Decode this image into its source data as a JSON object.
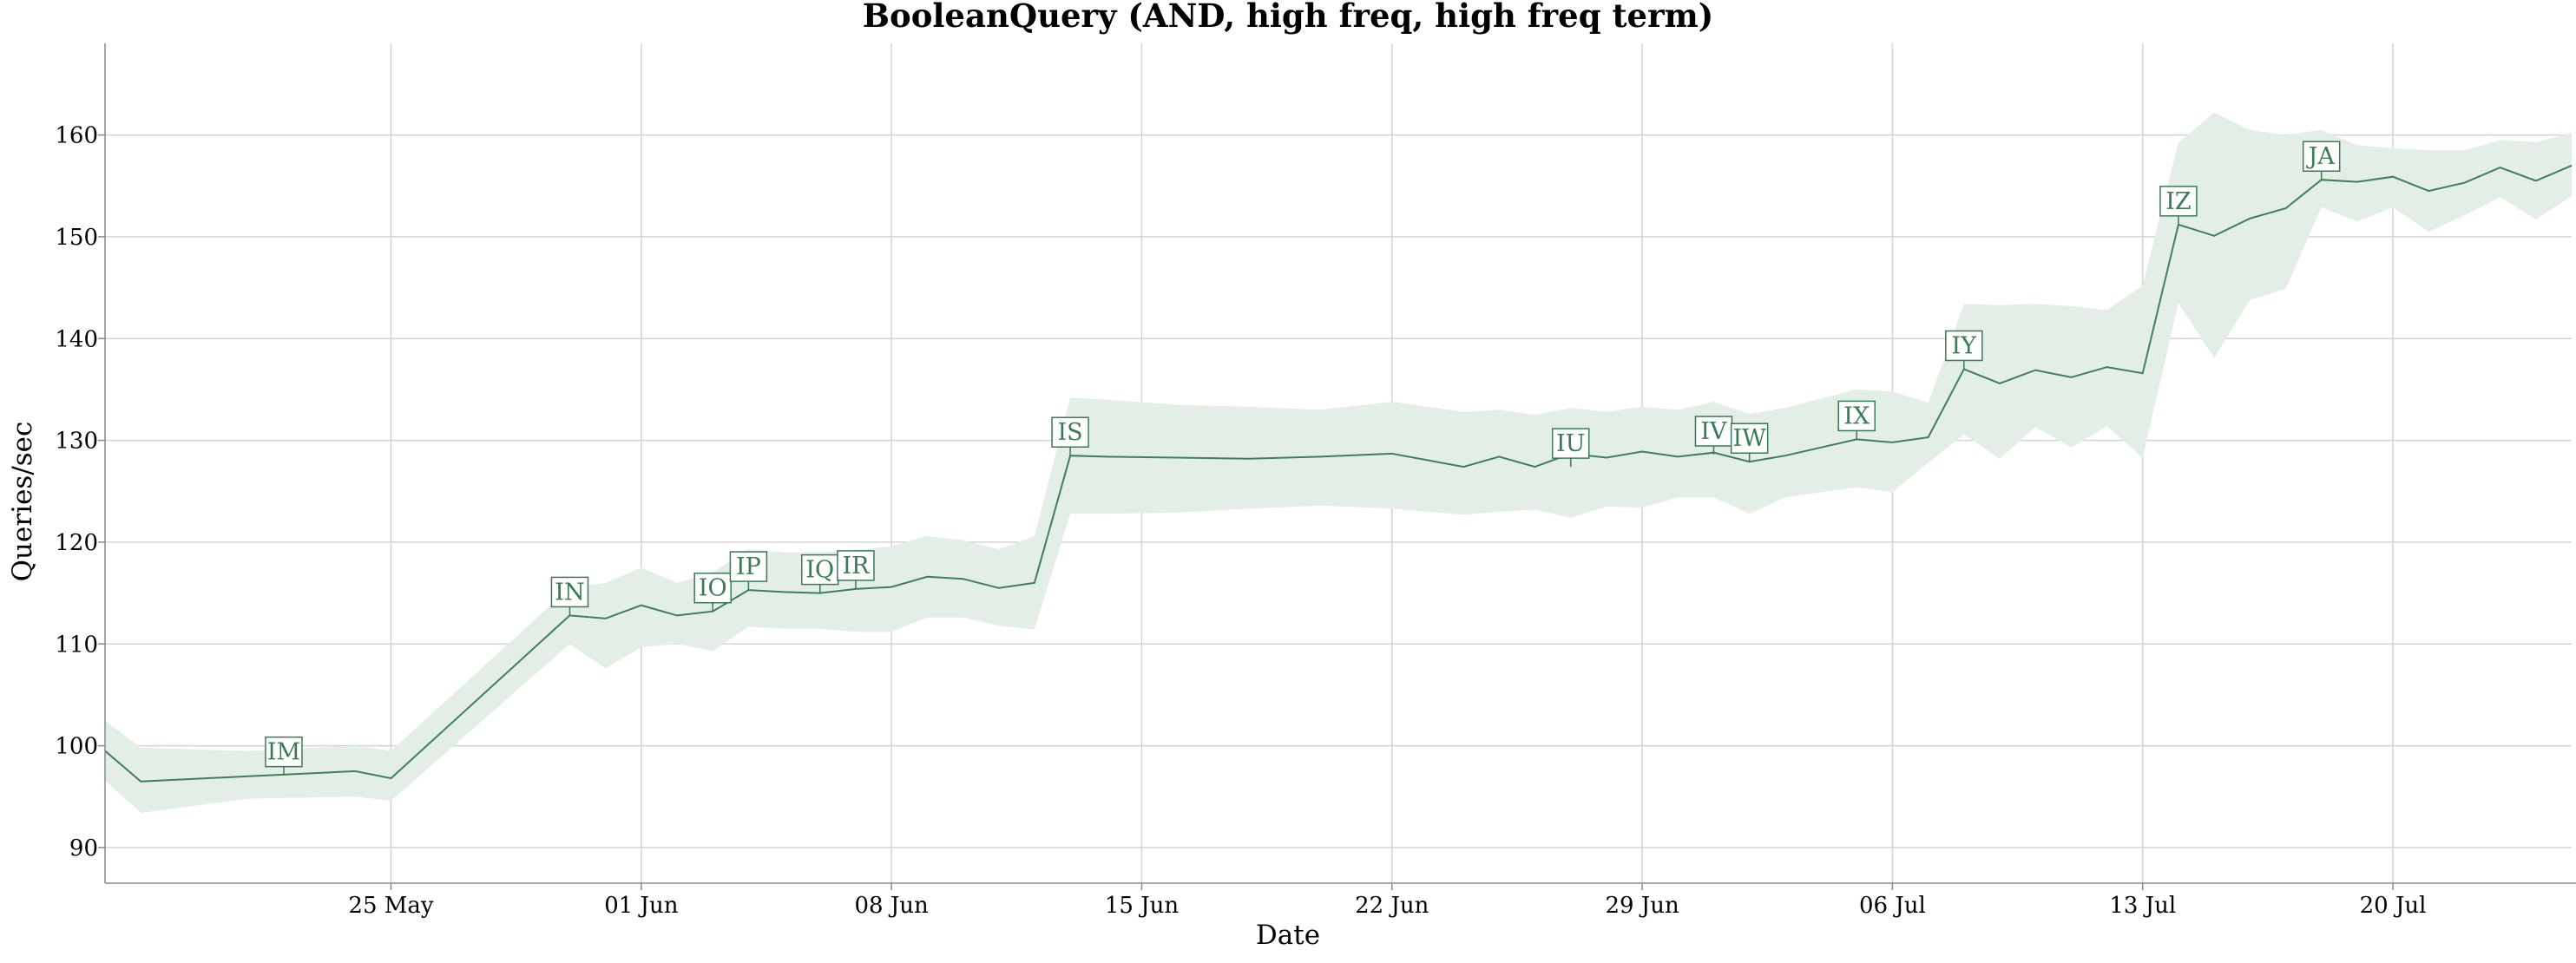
{
  "chart_data": {
    "type": "line",
    "title": "BooleanQuery (AND, high freq, high freq term)",
    "xlabel": "Date",
    "ylabel": "Queries/sec",
    "xlim": [
      "2020-05-17",
      "2020-07-25"
    ],
    "ylim": [
      86.5,
      169
    ],
    "grid": true,
    "x_ticks": [
      {
        "date": "2020-05-25",
        "label": "25 May"
      },
      {
        "date": "2020-06-01",
        "label": "01 Jun"
      },
      {
        "date": "2020-06-08",
        "label": "08 Jun"
      },
      {
        "date": "2020-06-15",
        "label": "15 Jun"
      },
      {
        "date": "2020-06-22",
        "label": "22 Jun"
      },
      {
        "date": "2020-06-29",
        "label": "29 Jun"
      },
      {
        "date": "2020-07-06",
        "label": "06 Jul"
      },
      {
        "date": "2020-07-13",
        "label": "13 Jul"
      },
      {
        "date": "2020-07-20",
        "label": "20 Jul"
      }
    ],
    "y_ticks": [
      90,
      100,
      110,
      120,
      130,
      140,
      150,
      160
    ],
    "colors": {
      "line": "#3f7f5a",
      "band": "#e2eee6",
      "annotation": "#3a7a55"
    },
    "series": [
      {
        "x": [
          "2020-05-17",
          "2020-05-18",
          "2020-05-21",
          "2020-05-24",
          "2020-05-25",
          "2020-05-30",
          "2020-05-31",
          "2020-06-01",
          "2020-06-02",
          "2020-06-03",
          "2020-06-04",
          "2020-06-05",
          "2020-06-06",
          "2020-06-07",
          "2020-06-08",
          "2020-06-09",
          "2020-06-10",
          "2020-06-11",
          "2020-06-12",
          "2020-06-13",
          "2020-06-14",
          "2020-06-16",
          "2020-06-18",
          "2020-06-20",
          "2020-06-22",
          "2020-06-24",
          "2020-06-25",
          "2020-06-26",
          "2020-06-27",
          "2020-06-28",
          "2020-06-29",
          "2020-06-30",
          "2020-07-01",
          "2020-07-02",
          "2020-07-03",
          "2020-07-05",
          "2020-07-06",
          "2020-07-07",
          "2020-07-08",
          "2020-07-09",
          "2020-07-10",
          "2020-07-11",
          "2020-07-12",
          "2020-07-13",
          "2020-07-14",
          "2020-07-15",
          "2020-07-16",
          "2020-07-17",
          "2020-07-18",
          "2020-07-19",
          "2020-07-20",
          "2020-07-21",
          "2020-07-22",
          "2020-07-23",
          "2020-07-24",
          "2020-07-25"
        ],
        "y": [
          99.5,
          96.5,
          97.0,
          97.5,
          96.8,
          112.8,
          112.5,
          113.8,
          112.8,
          113.2,
          115.3,
          115.1,
          115.0,
          115.4,
          115.6,
          116.6,
          116.4,
          115.5,
          116.0,
          128.5,
          128.4,
          128.3,
          128.2,
          128.4,
          128.7,
          127.4,
          128.4,
          127.4,
          128.7,
          128.3,
          128.9,
          128.4,
          128.8,
          127.9,
          128.5,
          130.1,
          129.8,
          130.3,
          137.0,
          135.6,
          136.9,
          136.2,
          137.2,
          136.6,
          151.2,
          150.1,
          151.8,
          152.8,
          155.6,
          155.4,
          155.9,
          154.5,
          155.3,
          156.8,
          155.5,
          157.0
        ],
        "upper": [
          102.5,
          99.8,
          99.5,
          100.0,
          99.5,
          115.5,
          116.0,
          117.5,
          116.0,
          117.0,
          119.3,
          119.0,
          119.0,
          119.2,
          119.6,
          120.6,
          120.2,
          119.3,
          120.6,
          134.2,
          134.0,
          133.5,
          133.3,
          133.0,
          133.8,
          132.8,
          133.0,
          132.5,
          133.2,
          132.8,
          133.3,
          133.0,
          133.8,
          132.6,
          133.2,
          135.0,
          134.8,
          133.7,
          143.4,
          143.3,
          143.4,
          143.2,
          142.8,
          145.2,
          159.2,
          162.2,
          160.5,
          160.0,
          160.5,
          159.0,
          158.7,
          158.5,
          158.5,
          159.5,
          159.3,
          160.2
        ],
        "lower": [
          96.6,
          93.4,
          94.8,
          95.0,
          94.6,
          110.0,
          107.6,
          109.7,
          110.0,
          109.3,
          111.7,
          111.5,
          111.5,
          111.2,
          111.2,
          112.6,
          112.6,
          111.8,
          111.4,
          122.8,
          122.8,
          122.9,
          123.3,
          123.6,
          123.3,
          122.7,
          123.0,
          123.2,
          122.4,
          123.5,
          123.4,
          124.4,
          124.4,
          122.8,
          124.4,
          125.4,
          124.9,
          127.8,
          130.6,
          128.2,
          131.3,
          129.3,
          131.4,
          128.3,
          143.5,
          138.1,
          143.8,
          144.9,
          152.9,
          151.5,
          152.9,
          150.5,
          152.1,
          153.9,
          151.7,
          154.0
        ]
      }
    ],
    "annotations": [
      {
        "label": "IM",
        "x": "2020-05-22",
        "y": 97.1
      },
      {
        "label": "IN",
        "x": "2020-05-30",
        "y": 112.8
      },
      {
        "label": "IO",
        "x": "2020-06-03",
        "y": 113.2
      },
      {
        "label": "IP",
        "x": "2020-06-04",
        "y": 115.3
      },
      {
        "label": "IQ",
        "x": "2020-06-06",
        "y": 115.0
      },
      {
        "label": "IR",
        "x": "2020-06-07",
        "y": 115.4
      },
      {
        "label": "IS",
        "x": "2020-06-13",
        "y": 128.5
      },
      {
        "label": "IU",
        "x": "2020-06-27",
        "y": 127.4
      },
      {
        "label": "IV",
        "x": "2020-07-01",
        "y": 128.6
      },
      {
        "label": "IW",
        "x": "2020-07-02",
        "y": 127.9
      },
      {
        "label": "IX",
        "x": "2020-07-05",
        "y": 130.1
      },
      {
        "label": "IY",
        "x": "2020-07-08",
        "y": 137.0
      },
      {
        "label": "IZ",
        "x": "2020-07-14",
        "y": 151.2
      },
      {
        "label": "JA",
        "x": "2020-07-18",
        "y": 155.6
      }
    ]
  }
}
